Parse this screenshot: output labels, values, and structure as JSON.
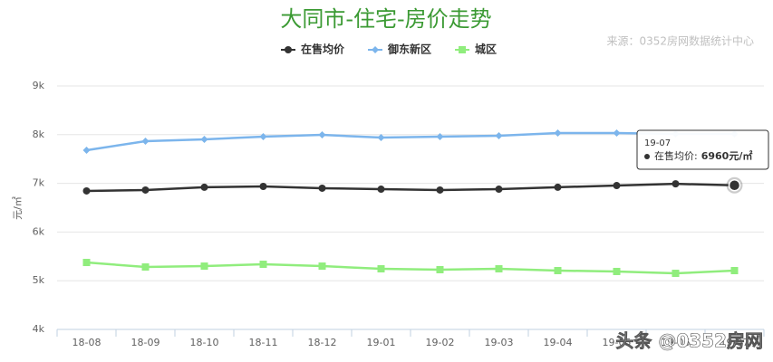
{
  "chart_data": {
    "type": "line",
    "title": "大同市-住宅-房价走势",
    "source": "来源：0352房网数据统计中心",
    "y_label": "元/㎡",
    "categories": [
      "18-08",
      "18-09",
      "18-10",
      "18-11",
      "18-12",
      "19-01",
      "19-02",
      "19-03",
      "19-04",
      "19-05",
      "19-06",
      "19-07"
    ],
    "series": [
      {
        "name": "在售均价",
        "color": "#333333",
        "marker": "circle",
        "values": [
          6845,
          6863,
          6920,
          6937,
          6900,
          6880,
          6863,
          6880,
          6920,
          6955,
          6990,
          6960
        ],
        "value_labels": [
          null,
          null,
          null,
          null,
          null,
          null,
          null,
          null,
          null,
          null,
          null,
          "6960元/㎡"
        ]
      },
      {
        "name": "御东新区",
        "color": "#7cb5ec",
        "marker": "diamond",
        "values": [
          7680,
          7866,
          7903,
          7960,
          7996,
          7940,
          7960,
          7978,
          8033,
          8033,
          8015,
          8015
        ]
      },
      {
        "name": "城区",
        "color": "#90ed7d",
        "marker": "square",
        "values": [
          5375,
          5282,
          5300,
          5338,
          5300,
          5245,
          5227,
          5245,
          5208,
          5190,
          5152,
          5208
        ]
      }
    ],
    "ylim": [
      4000,
      9000
    ],
    "yticks": [
      {
        "value": 4000,
        "label": "4k"
      },
      {
        "value": 5000,
        "label": "5k"
      },
      {
        "value": 6000,
        "label": "6k"
      },
      {
        "value": 7000,
        "label": "7k"
      },
      {
        "value": 8000,
        "label": "8k"
      },
      {
        "value": 9000,
        "label": "9k"
      }
    ],
    "grid": true,
    "legend": "top",
    "tooltip": {
      "label": "在售均价:"
    },
    "watermark": "头条 @0352房网"
  }
}
